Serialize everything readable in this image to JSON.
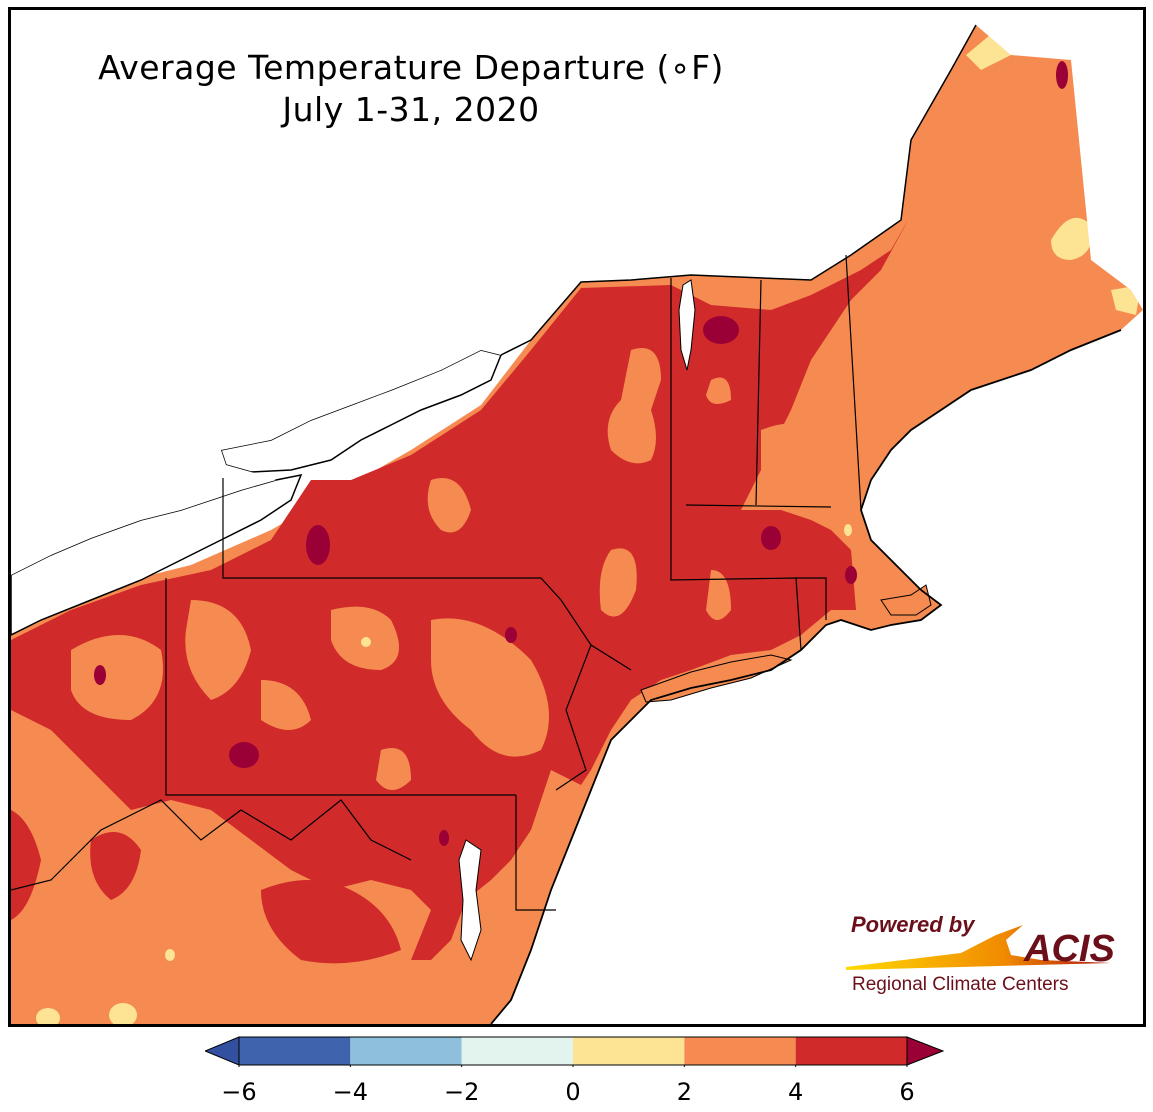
{
  "title": {
    "line1": "Average Temperature Departure (∘F)",
    "line2": "July 1-31, 2020"
  },
  "logo": {
    "powered_by": "Powered by",
    "brand": "ACIS",
    "tagline": "Regional Climate Centers"
  },
  "legend": {
    "ticks": [
      "−6",
      "−4",
      "−2",
      "0",
      "2",
      "4",
      "6"
    ],
    "bins": [
      {
        "from": -6,
        "to": -4,
        "color": "#3f64ad"
      },
      {
        "from": -4,
        "to": -2,
        "color": "#8ebfdd"
      },
      {
        "from": -2,
        "to": 0,
        "color": "#e3f4ef"
      },
      {
        "from": 0,
        "to": 2,
        "color": "#fde394"
      },
      {
        "from": 2,
        "to": 4,
        "color": "#f58b50"
      },
      {
        "from": 4,
        "to": 6,
        "color": "#d02a2a"
      }
    ],
    "under_color": "#3350a0",
    "over_color": "#9a0035"
  },
  "colors": {
    "lake": "#ffffff",
    "ocean": "#ffffff",
    "border": "#000000",
    "county": "#8c5a4a",
    "brand": "#6b0f1a"
  }
}
